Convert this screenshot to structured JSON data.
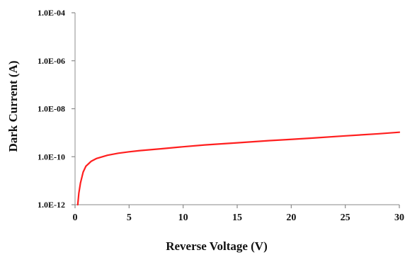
{
  "chart_data": {
    "type": "line",
    "title": "",
    "xlabel": "Reverse Voltage (V)",
    "ylabel": "Dark Current (A)",
    "xlim": [
      0,
      30
    ],
    "ylim": [
      1e-12,
      0.0001
    ],
    "yscale": "log",
    "grid": false,
    "legend": "none",
    "x_ticks": [
      0,
      5,
      10,
      15,
      20,
      25,
      30
    ],
    "x_tick_labels": [
      "0",
      "5",
      "10",
      "15",
      "20",
      "25",
      "30"
    ],
    "y_ticks": [
      1e-12,
      1e-10,
      1e-08,
      1e-06,
      0.0001
    ],
    "y_tick_labels": [
      "1.0E-12",
      "1.0E-10",
      "1.0E-08",
      "1.0E-06",
      "1.0E-04"
    ],
    "series": [
      {
        "color": "#ff1f1f",
        "x": [
          0.25,
          0.35,
          0.5,
          0.75,
          1,
          1.5,
          2,
          3,
          4,
          5,
          6,
          8,
          10,
          12,
          15,
          18,
          20,
          22,
          25,
          28,
          30
        ],
        "y": [
          1e-12,
          3e-12,
          8e-12,
          2.3e-11,
          4e-11,
          6.5e-11,
          8.5e-11,
          1.15e-10,
          1.4e-10,
          1.6e-10,
          1.8e-10,
          2.15e-10,
          2.6e-10,
          3.1e-10,
          3.8e-10,
          4.7e-10,
          5.3e-10,
          6e-10,
          7.4e-10,
          9e-10,
          1.05e-09
        ]
      }
    ]
  }
}
